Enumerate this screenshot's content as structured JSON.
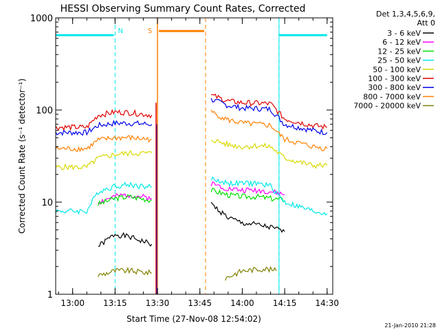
{
  "chart_data": {
    "type": "line",
    "title": "HESSI Observing Summary Count Rates, Corrected",
    "xlabel": "Start Time (27-Nov-08 12:54:02)",
    "ylabel": "Corrected Count Rate (s⁻¹ detector⁻¹)",
    "yscale": "log",
    "ylim": [
      1,
      1000
    ],
    "xlim": [
      "12:54",
      "14:32"
    ],
    "x_ticks": [
      "13:00",
      "13:15",
      "13:30",
      "13:45",
      "14:00",
      "14:15",
      "14:30"
    ],
    "y_ticks": [
      "1",
      "10",
      "100",
      "1000"
    ],
    "legend_header": [
      "Det 1,3,4,5,6,9,",
      "Att 0"
    ],
    "legend_position": "top-right outside",
    "timestamp": "21-Jan-2010 21:28",
    "series": [
      {
        "name": "3 - 6 keV",
        "color": "#000000",
        "x": [
          "13:09",
          "13:15",
          "13:20",
          "13:28",
          "13:49",
          "13:55",
          "14:00",
          "14:05",
          "14:10",
          "14:15"
        ],
        "values": [
          3.3,
          4.5,
          4.2,
          3.5,
          9.5,
          6.8,
          5.9,
          5.7,
          5.3,
          4.8
        ]
      },
      {
        "name": "6 - 12 keV",
        "color": "#ff00ff",
        "x": [
          "13:09",
          "13:15",
          "13:20",
          "13:28",
          "13:49",
          "13:55",
          "14:00",
          "14:05",
          "14:10",
          "14:15"
        ],
        "values": [
          10.0,
          11.5,
          12.0,
          11.0,
          16.0,
          14.0,
          13.5,
          13.5,
          13.0,
          12.0
        ]
      },
      {
        "name": "12 - 25 keV",
        "color": "#00e000",
        "x": [
          "13:09",
          "13:15",
          "13:20",
          "13:28",
          "13:49",
          "13:55",
          "14:00",
          "14:05",
          "14:10",
          "14:15"
        ],
        "values": [
          9.5,
          11.0,
          11.5,
          10.5,
          13.5,
          12.0,
          11.5,
          11.5,
          11.0,
          10.5
        ]
      },
      {
        "name": "25 - 50 keV",
        "color": "#00e8e8",
        "x": [
          "12:54",
          "13:05",
          "13:09",
          "13:15",
          "13:20",
          "13:28",
          "13:49",
          "13:55",
          "14:00",
          "14:05",
          "14:10",
          "14:15",
          "14:25",
          "14:30"
        ],
        "values": [
          8.0,
          8.0,
          13.0,
          15.0,
          15.5,
          14.5,
          18.0,
          16.0,
          16.0,
          16.0,
          15.0,
          10.0,
          8.0,
          7.5
        ]
      },
      {
        "name": "50 - 100 keV",
        "color": "#d8d800",
        "x": [
          "12:54",
          "13:05",
          "13:09",
          "13:15",
          "13:20",
          "13:28",
          "13:49",
          "13:55",
          "14:00",
          "14:05",
          "14:10",
          "14:15",
          "14:25",
          "14:30"
        ],
        "values": [
          24,
          24,
          30,
          33,
          34,
          34,
          48,
          42,
          40,
          41,
          40,
          30,
          25,
          25
        ]
      },
      {
        "name": "100 - 300 keV",
        "color": "#e00000",
        "x": [
          "12:54",
          "13:05",
          "13:09",
          "13:15",
          "13:20",
          "13:28",
          "13:49",
          "13:55",
          "14:00",
          "14:05",
          "14:10",
          "14:15",
          "14:25",
          "14:30"
        ],
        "values": [
          65,
          65,
          88,
          95,
          94,
          88,
          145,
          125,
          120,
          119,
          117,
          80,
          68,
          65
        ]
      },
      {
        "name": "300 - 800 keV",
        "color": "#0000e8",
        "x": [
          "12:54",
          "13:05",
          "13:09",
          "13:15",
          "13:20",
          "13:28",
          "13:49",
          "13:55",
          "14:00",
          "14:05",
          "14:10",
          "14:15",
          "14:25",
          "14:30"
        ],
        "values": [
          57,
          57,
          68,
          72,
          72,
          70,
          130,
          112,
          105,
          104,
          102,
          70,
          60,
          57
        ]
      },
      {
        "name": "800 - 7000 keV",
        "color": "#ff7f00",
        "x": [
          "12:54",
          "13:05",
          "13:09",
          "13:15",
          "13:20",
          "13:28",
          "13:49",
          "13:55",
          "14:00",
          "14:05",
          "14:10",
          "14:15",
          "14:25",
          "14:30"
        ],
        "values": [
          38,
          38,
          47,
          50,
          50,
          48,
          95,
          78,
          72,
          70,
          68,
          48,
          40,
          38
        ]
      },
      {
        "name": "7000 - 20000 keV",
        "color": "#808000",
        "x": [
          "13:09",
          "13:15",
          "13:20",
          "13:28",
          "13:54",
          "14:00",
          "14:08",
          "14:12"
        ],
        "values": [
          1.6,
          1.8,
          1.8,
          1.7,
          1.5,
          1.8,
          1.9,
          1.8
        ]
      }
    ],
    "annotations": [
      {
        "label": "N",
        "color": "#00e8e8",
        "kind": "night",
        "x_range": [
          "12:54",
          "13:15"
        ],
        "bar_value": 650
      },
      {
        "label": "",
        "color": "#00e8e8",
        "kind": "night",
        "x_range": [
          "14:13",
          "14:30"
        ],
        "bar_value": 650
      },
      {
        "label": "S",
        "color": "#ff7f00",
        "kind": "saa",
        "x_range": [
          "13:30",
          "13:47"
        ],
        "bar_value": 720
      }
    ]
  }
}
